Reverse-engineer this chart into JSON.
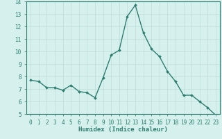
{
  "x": [
    0,
    1,
    2,
    3,
    4,
    5,
    6,
    7,
    8,
    9,
    10,
    11,
    12,
    13,
    14,
    15,
    16,
    17,
    18,
    19,
    20,
    21,
    22,
    23
  ],
  "y": [
    7.7,
    7.6,
    7.1,
    7.1,
    6.9,
    7.3,
    6.8,
    6.7,
    6.3,
    7.9,
    9.7,
    10.1,
    12.8,
    13.7,
    11.5,
    10.2,
    9.6,
    8.4,
    7.6,
    6.5,
    6.5,
    6.0,
    5.5,
    4.9
  ],
  "line_color": "#2d7d6e",
  "marker": "D",
  "marker_size": 2,
  "bg_color": "#d6f0ee",
  "grid_color": "#c0dcd8",
  "xlabel": "Humidex (Indice chaleur)",
  "ylim": [
    5,
    14
  ],
  "xlim": [
    -0.5,
    23.5
  ],
  "yticks": [
    5,
    6,
    7,
    8,
    9,
    10,
    11,
    12,
    13,
    14
  ],
  "xticks": [
    0,
    1,
    2,
    3,
    4,
    5,
    6,
    7,
    8,
    9,
    10,
    11,
    12,
    13,
    14,
    15,
    16,
    17,
    18,
    19,
    20,
    21,
    22,
    23
  ],
  "tick_fontsize": 5.5,
  "label_fontsize": 6.5,
  "axis_color": "#2d7d6e",
  "line_width": 1.0
}
